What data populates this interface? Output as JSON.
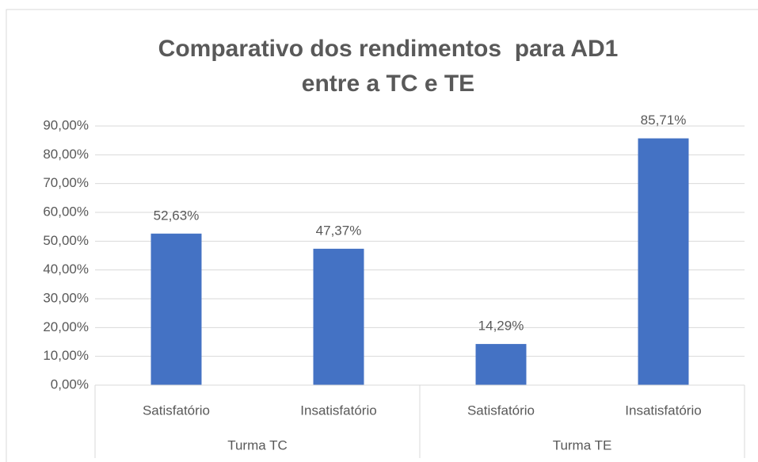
{
  "chart_data": {
    "type": "bar",
    "title": "Comparativo dos rendimentos  para AD1 entre a TC e TE",
    "categories": [
      "Satisfatório",
      "Insatisfatório",
      "Satisfatório",
      "Insatisfatório"
    ],
    "groups": [
      "Turma TC",
      "Turma TE"
    ],
    "values": [
      52.63,
      47.37,
      14.29,
      85.71
    ],
    "value_labels": [
      "52,63%",
      "47,37%",
      "14,29%",
      "85,71%"
    ],
    "color": "#4472c4",
    "ylim": [
      0,
      90
    ],
    "yticks": [
      {
        "value": 0,
        "label": "0,00%"
      },
      {
        "value": 10,
        "label": "10,00%"
      },
      {
        "value": 20,
        "label": "20,00%"
      },
      {
        "value": 30,
        "label": "30,00%"
      },
      {
        "value": 40,
        "label": "40,00%"
      },
      {
        "value": 50,
        "label": "50,00%"
      },
      {
        "value": 60,
        "label": "60,00%"
      },
      {
        "value": 70,
        "label": "70,00%"
      },
      {
        "value": 80,
        "label": "80,00%"
      },
      {
        "value": 90,
        "label": "90,00%"
      }
    ],
    "grid": true
  }
}
